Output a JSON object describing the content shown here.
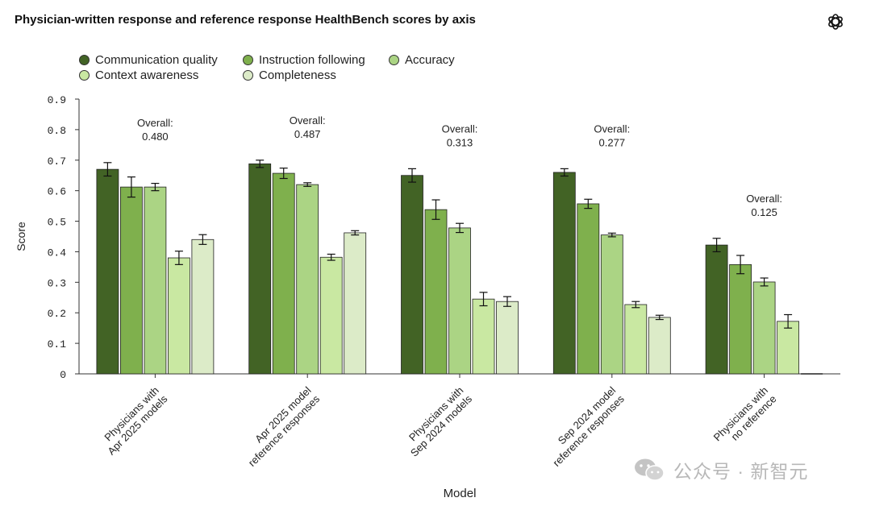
{
  "title": "Physician-written response and reference response HealthBench scores by axis",
  "logo_icon": "openai-logo-icon",
  "watermark": {
    "text": "公众号 · 新智元",
    "icon": "wechat-icon"
  },
  "colors": {
    "Communication quality": "#426325",
    "Instruction following": "#7fb04d",
    "Accuracy": "#abd484",
    "Context awareness": "#c9e8a2",
    "Completeness": "#dcebc8"
  },
  "chart_data": {
    "type": "bar",
    "title": "Physician-written response and reference response HealthBench scores by axis",
    "xlabel": "Model",
    "ylabel": "Score",
    "ylim": [
      0,
      0.9
    ],
    "yticks": [
      "0",
      "0.1",
      "0.2",
      "0.3",
      "0.4",
      "0.5",
      "0.6",
      "0.7",
      "0.8",
      "0.9"
    ],
    "categories": [
      [
        "Physicians with",
        "Apr 2025 models"
      ],
      [
        "Apr 2025 model",
        "reference responses"
      ],
      [
        "Physicians with",
        "Sep 2024 models"
      ],
      [
        "Sep 2024 model",
        "reference responses"
      ],
      [
        "Physicians with",
        "no reference"
      ]
    ],
    "overall_label": "Overall:",
    "overall": [
      "0.480",
      "0.487",
      "0.313",
      "0.277",
      "0.125"
    ],
    "series": [
      {
        "name": "Communication quality",
        "values": [
          0.67,
          0.688,
          0.65,
          0.66,
          0.422
        ],
        "errors": [
          0.022,
          0.012,
          0.022,
          0.012,
          0.022
        ]
      },
      {
        "name": "Instruction following",
        "values": [
          0.612,
          0.657,
          0.538,
          0.557,
          0.358
        ],
        "errors": [
          0.033,
          0.017,
          0.032,
          0.015,
          0.03
        ]
      },
      {
        "name": "Accuracy",
        "values": [
          0.612,
          0.62,
          0.478,
          0.455,
          0.301
        ],
        "errors": [
          0.012,
          0.006,
          0.015,
          0.006,
          0.013
        ]
      },
      {
        "name": "Context awareness",
        "values": [
          0.38,
          0.382,
          0.245,
          0.227,
          0.172
        ],
        "errors": [
          0.022,
          0.01,
          0.022,
          0.01,
          0.022
        ]
      },
      {
        "name": "Completeness",
        "values": [
          0.44,
          0.462,
          0.237,
          0.185,
          0.0
        ],
        "errors": [
          0.016,
          0.007,
          0.016,
          0.007,
          0.0
        ]
      }
    ],
    "legend_position": "top-left"
  }
}
